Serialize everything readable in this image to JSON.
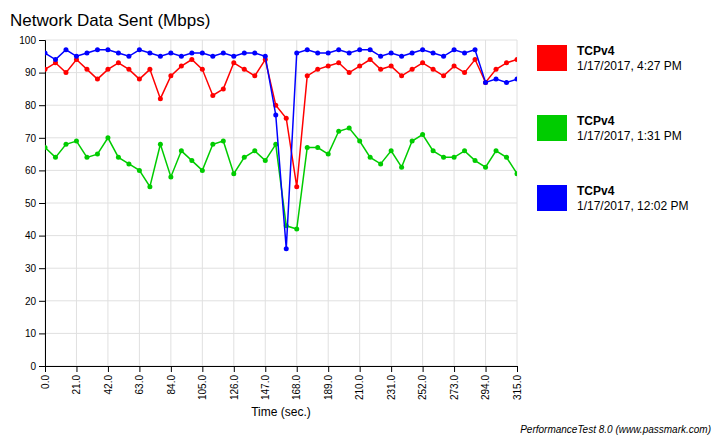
{
  "chart_data": {
    "type": "line",
    "title": "Network Data Sent (Mbps)",
    "x_label": "Time (sec.)",
    "annotations": [
      "PerformanceTest 8.0 (www.passmark.com)"
    ],
    "x": [
      0,
      7,
      14,
      21,
      28,
      35,
      42,
      49,
      56,
      63,
      70,
      77,
      84,
      91,
      98,
      105,
      112,
      119,
      126,
      133,
      140,
      147,
      154,
      161,
      168,
      175,
      182,
      189,
      196,
      203,
      210,
      217,
      224,
      231,
      238,
      245,
      252,
      259,
      266,
      273,
      280,
      287,
      294,
      301,
      308,
      315
    ],
    "series": [
      {
        "name": [
          "TCPv4",
          "1/17/2017, 4:27 PM"
        ],
        "color": "#ff0000",
        "marker": "circle",
        "values": [
          91,
          93,
          90,
          94,
          91,
          88,
          91,
          93,
          91,
          88,
          91,
          82,
          89,
          92,
          94,
          91,
          83,
          85,
          93,
          91,
          89,
          94,
          80,
          76,
          55,
          89,
          91,
          92,
          93,
          90,
          92,
          94,
          91,
          92,
          89,
          91,
          93,
          91,
          89,
          92,
          90,
          94,
          87,
          91,
          93,
          94
        ]
      },
      {
        "name": [
          "TCPv4",
          "1/17/2017, 1:31 PM"
        ],
        "color": "#00cc00",
        "marker": "circle",
        "values": [
          67,
          64,
          68,
          69,
          64,
          65,
          70,
          64,
          62,
          60,
          55,
          68,
          58,
          66,
          63,
          60,
          68,
          69,
          59,
          64,
          66,
          63,
          68,
          43,
          42,
          67,
          67,
          65,
          72,
          73,
          69,
          64,
          62,
          66,
          61,
          69,
          71,
          66,
          64,
          64,
          66,
          63,
          61,
          66,
          64,
          59
        ]
      },
      {
        "name": [
          "TCPv4",
          "1/17/2017, 12:02 PM"
        ],
        "color": "#0000ff",
        "marker": "circle",
        "values": [
          96,
          94,
          97,
          95,
          96,
          97,
          97,
          96,
          95,
          97,
          96,
          95,
          96,
          95,
          96,
          96,
          95,
          96,
          95,
          96,
          96,
          95,
          77,
          36,
          96,
          97,
          96,
          96,
          97,
          96,
          97,
          97,
          95,
          96,
          95,
          96,
          97,
          96,
          95,
          97,
          96,
          97,
          87,
          88,
          87,
          88
        ]
      }
    ],
    "xlim": [
      0,
      315
    ],
    "ylim": [
      0,
      100
    ],
    "xticks": [
      {
        "value": 0,
        "label": "0.0"
      },
      {
        "value": 21,
        "label": "21.0"
      },
      {
        "value": 42,
        "label": "42.0"
      },
      {
        "value": 63,
        "label": "63.0"
      },
      {
        "value": 84,
        "label": "84.0"
      },
      {
        "value": 105,
        "label": "105.0"
      },
      {
        "value": 126,
        "label": "126.0"
      },
      {
        "value": 147,
        "label": "147.0"
      },
      {
        "value": 168,
        "label": "168.0"
      },
      {
        "value": 189,
        "label": "189.0"
      },
      {
        "value": 210,
        "label": "210.0"
      },
      {
        "value": 231,
        "label": "231.0"
      },
      {
        "value": 252,
        "label": "252.0"
      },
      {
        "value": 273,
        "label": "273.0"
      },
      {
        "value": 294,
        "label": "294.0"
      },
      {
        "value": 315,
        "label": "315.0"
      }
    ],
    "yticks": [
      0,
      10,
      20,
      30,
      40,
      50,
      60,
      70,
      80,
      90,
      100
    ],
    "grid": true
  }
}
